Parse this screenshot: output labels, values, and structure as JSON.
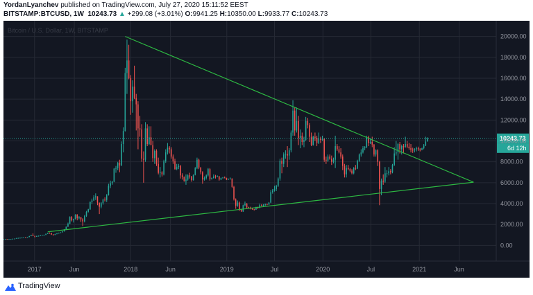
{
  "header": {
    "publisher_line": "YordanLyanchev published on TradingView.com, July 27, 2020 15:11:52 EEST",
    "publisher_name": "YordanLyanchev",
    "publisher_rest": " published on TradingView.com, July 27, 2020 15:11:52 EEST",
    "symbol": "BITSTAMP:BTCUSD, 1W",
    "last": "10243.73",
    "change": "+299.08 (+3.01%)",
    "open_label": "O:",
    "open": "9941.25",
    "high_label": "H:",
    "high": "10350.00",
    "low_label": "L:",
    "low": "9933.77",
    "close_label": "C:",
    "close": "10243.73"
  },
  "footer": {
    "brand": "TradingView",
    "brand_icon": "tradingview-logo-icon"
  },
  "colors": {
    "bg": "#131722",
    "up": "#26a69a",
    "down": "#ef5350",
    "trend": "#2db842",
    "price_line": "#26a69a",
    "grid": "#262a35",
    "axis_text": "#9598a1"
  },
  "chart_data": {
    "type": "candlestick",
    "title": "Bitcoin / U.S. Dollar, 1W, BITSTAMP",
    "ylim": [
      -1500,
      21500
    ],
    "y_ticks": [
      "0.00",
      "2000.00",
      "4000.00",
      "6000.00",
      "8000.00",
      "10000.00",
      "12000.00",
      "14000.00",
      "16000.00",
      "18000.00",
      "20000.00"
    ],
    "y_tick_values": [
      0,
      2000,
      4000,
      6000,
      8000,
      10000,
      12000,
      14000,
      16000,
      18000,
      20000
    ],
    "x_ticks": [
      {
        "label": "2017",
        "date": "2017-01-01"
      },
      {
        "label": "Jun",
        "date": "2017-06-01"
      },
      {
        "label": "2018",
        "date": "2018-01-01"
      },
      {
        "label": "Jun",
        "date": "2018-06-01"
      },
      {
        "label": "2019",
        "date": "2019-01-01"
      },
      {
        "label": "Jul",
        "date": "2019-07-01"
      },
      {
        "label": "2020",
        "date": "2020-01-01"
      },
      {
        "label": "Jul",
        "date": "2020-07-01"
      },
      {
        "label": "2021",
        "date": "2021-01-01"
      },
      {
        "label": "Jun",
        "date": "2021-06-01"
      }
    ],
    "x_range": [
      "2016-09-05",
      "2021-10-20"
    ],
    "price_label": "10243.73",
    "countdown_label": "6d 12h",
    "price_line_value": 10243.73,
    "trendlines": [
      {
        "name": "upper",
        "from": [
          "2017-12-11",
          20000
        ],
        "to": [
          "2021-07-26",
          6050
        ]
      },
      {
        "name": "lower",
        "from": [
          "2017-02-20",
          1300
        ],
        "to": [
          "2021-07-26",
          6050
        ]
      }
    ],
    "candles_weekly_from": "2016-09-05",
    "candles": [
      [
        606,
        610,
        595,
        608
      ],
      [
        608,
        615,
        600,
        612
      ],
      [
        612,
        616,
        598,
        604
      ],
      [
        604,
        612,
        600,
        609
      ],
      [
        609,
        615,
        605,
        611
      ],
      [
        611,
        640,
        608,
        636
      ],
      [
        636,
        660,
        630,
        652
      ],
      [
        652,
        712,
        645,
        700
      ],
      [
        700,
        735,
        690,
        714
      ],
      [
        714,
        745,
        700,
        732
      ],
      [
        732,
        760,
        720,
        748
      ],
      [
        748,
        780,
        740,
        770
      ],
      [
        770,
        790,
        755,
        765
      ],
      [
        765,
        800,
        760,
        792
      ],
      [
        792,
        905,
        788,
        895
      ],
      [
        895,
        1000,
        880,
        990
      ],
      [
        990,
        1150,
        885,
        905
      ],
      [
        905,
        925,
        760,
        830
      ],
      [
        830,
        920,
        820,
        905
      ],
      [
        905,
        940,
        880,
        915
      ],
      [
        915,
        980,
        900,
        970
      ],
      [
        970,
        1010,
        950,
        995
      ],
      [
        995,
        1030,
        940,
        1005
      ],
      [
        1005,
        1130,
        990,
        1110
      ],
      [
        1110,
        1210,
        1090,
        1185
      ],
      [
        1185,
        1240,
        1150,
        1180
      ],
      [
        1180,
        1200,
        1010,
        1050
      ],
      [
        1050,
        1080,
        940,
        1000
      ],
      [
        1000,
        1120,
        990,
        1090
      ],
      [
        1090,
        1180,
        1060,
        1160
      ],
      [
        1160,
        1220,
        1150,
        1200
      ],
      [
        1200,
        1260,
        1180,
        1250
      ],
      [
        1250,
        1360,
        1240,
        1340
      ],
      [
        1340,
        1560,
        1320,
        1550
      ],
      [
        1550,
        1810,
        1530,
        1790
      ],
      [
        1790,
        2180,
        1760,
        2070
      ],
      [
        2070,
        2780,
        2040,
        2730
      ],
      [
        2730,
        2800,
        2300,
        2400
      ],
      [
        2400,
        2560,
        2190,
        2520
      ],
      [
        2520,
        2990,
        2480,
        2950
      ],
      [
        2950,
        2990,
        2400,
        2600
      ],
      [
        2600,
        2800,
        2500,
        2710
      ],
      [
        2710,
        2720,
        2250,
        2500
      ],
      [
        2500,
        2600,
        1850,
        2300
      ],
      [
        2300,
        2920,
        2200,
        2830
      ],
      [
        2830,
        3300,
        2730,
        3220
      ],
      [
        3220,
        3500,
        3150,
        3450
      ],
      [
        3450,
        4200,
        3400,
        4150
      ],
      [
        4150,
        4480,
        3950,
        4300
      ],
      [
        4300,
        4800,
        4250,
        4600
      ],
      [
        4600,
        4980,
        4350,
        4700
      ],
      [
        4700,
        4710,
        3850,
        4100
      ],
      [
        4100,
        4100,
        3000,
        3700
      ],
      [
        3700,
        4140,
        3550,
        4050
      ],
      [
        4050,
        4480,
        3900,
        4380
      ],
      [
        4380,
        4600,
        4200,
        4350
      ],
      [
        4350,
        4920,
        4150,
        4800
      ],
      [
        4800,
        5900,
        4770,
        5700
      ],
      [
        5700,
        6200,
        5480,
        5950
      ],
      [
        5950,
        6180,
        5800,
        6100
      ],
      [
        6100,
        7400,
        6050,
        7350
      ],
      [
        7350,
        7600,
        6950,
        7400
      ],
      [
        7400,
        8000,
        7200,
        7900
      ],
      [
        7900,
        8200,
        7000,
        7650
      ],
      [
        7650,
        9950,
        7600,
        9700
      ],
      [
        9700,
        11300,
        8900,
        10950
      ],
      [
        10950,
        17000,
        10900,
        16500
      ],
      [
        16500,
        19700,
        14500,
        17700
      ],
      [
        17700,
        19200,
        15900,
        16000
      ],
      [
        16000,
        16300,
        12500,
        13800
      ],
      [
        13800,
        15800,
        12700,
        15200
      ],
      [
        15200,
        17200,
        14000,
        14100
      ],
      [
        14100,
        14500,
        11000,
        13500
      ],
      [
        13500,
        13800,
        9200,
        11200
      ],
      [
        11200,
        12400,
        10400,
        11100
      ],
      [
        11100,
        11600,
        8000,
        8300
      ],
      [
        8300,
        9000,
        6000,
        8200
      ],
      [
        8200,
        11800,
        8000,
        11200
      ],
      [
        11200,
        11600,
        9500,
        9700
      ],
      [
        9700,
        11400,
        9600,
        10350
      ],
      [
        10350,
        11400,
        9600,
        9600
      ],
      [
        9600,
        10000,
        8000,
        8350
      ],
      [
        8350,
        9200,
        7800,
        9050
      ],
      [
        9050,
        9200,
        7600,
        7800
      ],
      [
        7800,
        8400,
        6800,
        6950
      ],
      [
        6950,
        7500,
        6500,
        7000
      ],
      [
        7000,
        7100,
        6600,
        6800
      ],
      [
        6800,
        8200,
        6700,
        8050
      ],
      [
        8050,
        9200,
        7900,
        8900
      ],
      [
        8900,
        9800,
        8700,
        9350
      ],
      [
        9350,
        9500,
        8800,
        9200
      ],
      [
        9200,
        9400,
        8300,
        8500
      ],
      [
        8500,
        8700,
        7800,
        8050
      ],
      [
        8050,
        8300,
        7250,
        7300
      ],
      [
        7300,
        7800,
        7200,
        7500
      ],
      [
        7500,
        7800,
        7300,
        7600
      ],
      [
        7600,
        7700,
        6400,
        6700
      ],
      [
        6700,
        6900,
        6300,
        6550
      ],
      [
        6550,
        6600,
        6100,
        6150
      ],
      [
        6150,
        6800,
        5800,
        6300
      ],
      [
        6300,
        6800,
        6200,
        6700
      ],
      [
        6700,
        6950,
        6400,
        6600
      ],
      [
        6600,
        6650,
        6100,
        6250
      ],
      [
        6250,
        6800,
        6200,
        6750
      ],
      [
        6750,
        7500,
        6700,
        7400
      ],
      [
        7400,
        8400,
        7300,
        8200
      ],
      [
        8200,
        8300,
        7300,
        7450
      ],
      [
        7450,
        7500,
        6800,
        7000
      ],
      [
        7000,
        7100,
        5900,
        6300
      ],
      [
        6300,
        6600,
        6200,
        6450
      ],
      [
        6450,
        6800,
        6300,
        6700
      ],
      [
        6700,
        7400,
        6600,
        7300
      ],
      [
        7300,
        7400,
        6200,
        6350
      ],
      [
        6350,
        6500,
        6300,
        6450
      ],
      [
        6450,
        6800,
        6400,
        6600
      ],
      [
        6600,
        6750,
        6400,
        6550
      ],
      [
        6550,
        6700,
        6550,
        6600
      ],
      [
        6600,
        6650,
        6200,
        6300
      ],
      [
        6300,
        6500,
        6250,
        6450
      ],
      [
        6450,
        6550,
        6400,
        6500
      ],
      [
        6500,
        6600,
        6420,
        6450
      ],
      [
        6450,
        6480,
        6250,
        6300
      ],
      [
        6300,
        6400,
        6280,
        6350
      ],
      [
        6350,
        6500,
        6300,
        6400
      ],
      [
        6400,
        6420,
        5500,
        5600
      ],
      [
        5600,
        5700,
        4300,
        4400
      ],
      [
        4400,
        4500,
        3500,
        3800
      ],
      [
        3800,
        4300,
        3700,
        4100
      ],
      [
        4100,
        4200,
        3300,
        3450
      ],
      [
        3450,
        3500,
        3200,
        3250
      ],
      [
        3250,
        3900,
        3200,
        3850
      ],
      [
        3850,
        4200,
        3750,
        4000
      ],
      [
        4000,
        4050,
        3500,
        3650
      ],
      [
        3650,
        3700,
        3500,
        3620
      ],
      [
        3620,
        3700,
        3450,
        3550
      ],
      [
        3550,
        3600,
        3400,
        3450
      ],
      [
        3450,
        3500,
        3350,
        3420
      ],
      [
        3420,
        3700,
        3400,
        3650
      ],
      [
        3650,
        3700,
        3500,
        3600
      ],
      [
        3600,
        4000,
        3550,
        3850
      ],
      [
        3850,
        3950,
        3750,
        3800
      ],
      [
        3800,
        3950,
        3700,
        3880
      ],
      [
        3880,
        4000,
        3800,
        3950
      ],
      [
        3950,
        4000,
        3850,
        3900
      ],
      [
        3900,
        4150,
        3880,
        4100
      ],
      [
        4100,
        5300,
        4050,
        5100
      ],
      [
        5100,
        5400,
        4950,
        5250
      ],
      [
        5250,
        5700,
        5150,
        5400
      ],
      [
        5400,
        5800,
        5200,
        5700
      ],
      [
        5700,
        6500,
        5600,
        6400
      ],
      [
        6400,
        8300,
        6200,
        8100
      ],
      [
        8100,
        8400,
        6900,
        7800
      ],
      [
        7800,
        8900,
        7500,
        8700
      ],
      [
        8700,
        9100,
        8300,
        8750
      ],
      [
        8750,
        9500,
        7500,
        8600
      ],
      [
        8600,
        9300,
        8200,
        9100
      ],
      [
        9100,
        11000,
        8900,
        10800
      ],
      [
        10800,
        13900,
        10500,
        12900
      ],
      [
        12900,
        13200,
        10500,
        11000
      ],
      [
        11000,
        13200,
        10800,
        11900
      ],
      [
        11900,
        12400,
        9600,
        10300
      ],
      [
        10300,
        11100,
        9300,
        10500
      ],
      [
        10500,
        10800,
        9600,
        9900
      ],
      [
        9900,
        10400,
        9400,
        10100
      ],
      [
        10100,
        12300,
        10000,
        11900
      ],
      [
        11900,
        12200,
        11200,
        11500
      ],
      [
        11500,
        11700,
        9900,
        10400
      ],
      [
        10400,
        10800,
        9500,
        9600
      ],
      [
        9600,
        10500,
        9550,
        10400
      ],
      [
        10400,
        10800,
        10000,
        10300
      ],
      [
        10300,
        10500,
        9500,
        9800
      ],
      [
        9800,
        10800,
        9700,
        10200
      ],
      [
        10200,
        10400,
        9800,
        10100
      ],
      [
        10100,
        10500,
        10000,
        10200
      ],
      [
        10200,
        10250,
        8000,
        8200
      ],
      [
        8200,
        8500,
        7800,
        8100
      ],
      [
        8100,
        8700,
        8000,
        8500
      ],
      [
        8500,
        8700,
        8200,
        8300
      ],
      [
        8300,
        8600,
        7700,
        8000
      ],
      [
        8000,
        8400,
        7850,
        8200
      ],
      [
        8200,
        10500,
        7400,
        9500
      ],
      [
        9500,
        9700,
        9050,
        9200
      ],
      [
        9200,
        9500,
        8800,
        8900
      ],
      [
        8900,
        9300,
        8300,
        8500
      ],
      [
        8500,
        8700,
        7200,
        7600
      ],
      [
        7600,
        7800,
        6500,
        6800
      ],
      [
        6800,
        7700,
        6500,
        7400
      ],
      [
        7400,
        7700,
        7200,
        7300
      ],
      [
        7300,
        7400,
        7000,
        7150
      ],
      [
        7150,
        7300,
        6800,
        6900
      ],
      [
        6900,
        7500,
        6800,
        7400
      ],
      [
        7400,
        7700,
        7200,
        7350
      ],
      [
        7350,
        8200,
        7300,
        8100
      ],
      [
        8100,
        8800,
        8000,
        8700
      ],
      [
        8700,
        9200,
        8500,
        8900
      ],
      [
        8900,
        9500,
        8800,
        9300
      ],
      [
        9300,
        9500,
        9100,
        9400
      ],
      [
        9400,
        10500,
        9300,
        10350
      ],
      [
        10350,
        10500,
        9500,
        9800
      ],
      [
        9800,
        10200,
        9700,
        9900
      ],
      [
        9900,
        10400,
        9400,
        9650
      ],
      [
        9650,
        9700,
        8500,
        8700
      ],
      [
        8700,
        9200,
        8500,
        9100
      ],
      [
        9100,
        9200,
        7600,
        8000
      ],
      [
        8000,
        8100,
        3850,
        5400
      ],
      [
        5400,
        6400,
        4800,
        6200
      ],
      [
        6200,
        6800,
        5800,
        6100
      ],
      [
        6100,
        7500,
        6000,
        6900
      ],
      [
        6900,
        7200,
        6500,
        6900
      ],
      [
        6900,
        7500,
        6700,
        7100
      ],
      [
        7100,
        7300,
        6800,
        7000
      ],
      [
        7000,
        7800,
        6900,
        7700
      ],
      [
        7700,
        9400,
        7600,
        8800
      ],
      [
        8800,
        10000,
        8600,
        8900
      ],
      [
        8900,
        9800,
        8200,
        9700
      ],
      [
        9700,
        9900,
        8800,
        9200
      ],
      [
        9200,
        9650,
        8700,
        9500
      ],
      [
        9500,
        9700,
        8800,
        9400
      ],
      [
        9400,
        10400,
        9350,
        9700
      ],
      [
        9700,
        10000,
        9300,
        9450
      ],
      [
        9450,
        9800,
        9150,
        9300
      ],
      [
        9300,
        9700,
        8900,
        9150
      ],
      [
        9150,
        9350,
        8850,
        9100
      ],
      [
        9100,
        9300,
        8900,
        9200
      ],
      [
        9200,
        9450,
        9000,
        9300
      ],
      [
        9300,
        9450,
        9050,
        9200
      ],
      [
        9200,
        9300,
        9000,
        9150
      ],
      [
        9150,
        9350,
        9100,
        9300
      ],
      [
        9300,
        9700,
        9200,
        9550
      ],
      [
        9550,
        10400,
        9500,
        9940
      ],
      [
        9941,
        10350,
        9934,
        10244
      ]
    ]
  }
}
